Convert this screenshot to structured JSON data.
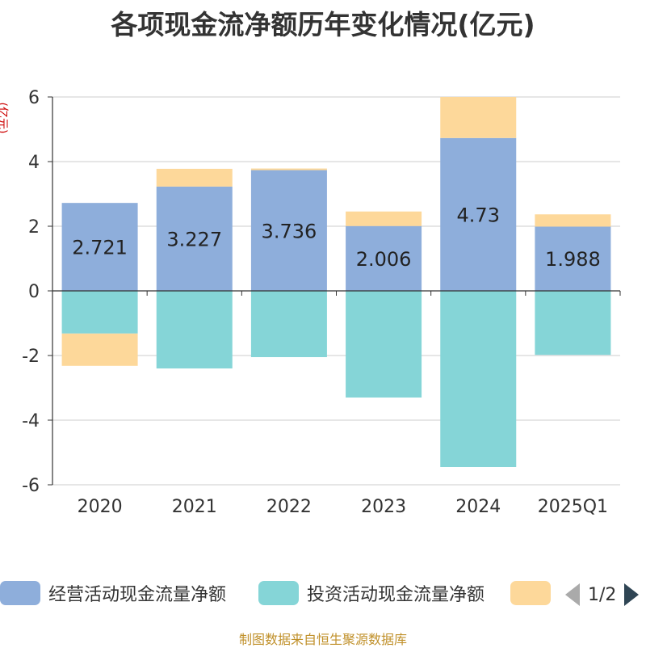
{
  "title": "各项现金流净额历年变化情况(亿元)",
  "unit_label": "(亿元)",
  "source": "制图数据来自恒生聚源数据库",
  "pager": {
    "text": "1/2"
  },
  "chart_data": {
    "type": "bar",
    "stacked": true,
    "categories": [
      "2020",
      "2021",
      "2022",
      "2023",
      "2024",
      "2025Q1"
    ],
    "ylim": [
      -6,
      6
    ],
    "yticks": [
      -6,
      -4,
      -2,
      0,
      2,
      4,
      6
    ],
    "grid": true,
    "legend_position": "bottom",
    "series": [
      {
        "name": "经营活动现金流量净额",
        "color": "#8eaedb",
        "values": [
          2.721,
          3.227,
          3.736,
          2.006,
          4.73,
          1.988
        ],
        "show_labels": true
      },
      {
        "name": "投资活动现金流量净额",
        "color": "#85d5d7",
        "values": [
          -1.32,
          -2.4,
          -2.05,
          -3.3,
          -5.45,
          -1.98
        ],
        "show_labels": false
      },
      {
        "name": "",
        "color": "#fdd89a",
        "values": [
          -1.0,
          0.55,
          0.05,
          0.45,
          1.27,
          0.38
        ],
        "show_labels": false
      }
    ]
  }
}
